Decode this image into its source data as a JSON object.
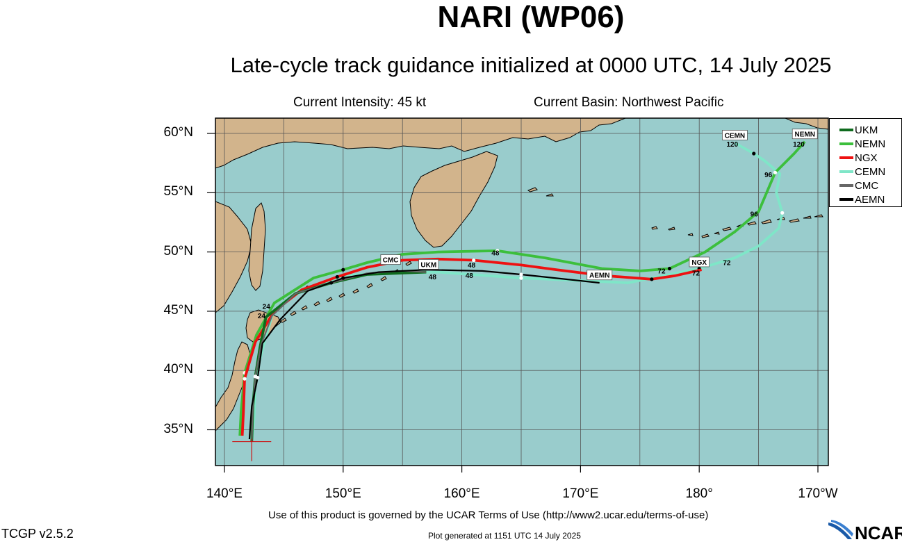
{
  "header": {
    "title": "NARI (WP06)",
    "subtitle": "Late-cycle track guidance initialized at 0000 UTC, 14 July 2025",
    "intensity": "Current Intensity: 45 kt",
    "basin": "Current Basin: Northwest Pacific"
  },
  "axes": {
    "lat_labels": [
      "60°N",
      "55°N",
      "50°N",
      "45°N",
      "40°N",
      "35°N"
    ],
    "lon_labels": [
      "140°E",
      "150°E",
      "160°E",
      "170°E",
      "180°",
      "170°W"
    ]
  },
  "legend": [
    {
      "name": "UKM",
      "color": "#0f6b1e"
    },
    {
      "name": "NEMN",
      "color": "#3cbf3c"
    },
    {
      "name": "NGX",
      "color": "#ee1111"
    },
    {
      "name": "CEMN",
      "color": "#7fe6c8"
    },
    {
      "name": "CMC",
      "color": "#666666"
    },
    {
      "name": "AEMN",
      "color": "#000000"
    }
  ],
  "tracks": [
    {
      "name": "CEMN",
      "color": "#7fe6c8",
      "label_text": "CEMN",
      "points": [
        [
          142.3,
          34.0
        ],
        [
          142.5,
          36
        ],
        [
          142.6,
          39.4
        ],
        [
          143.4,
          42.5
        ],
        [
          144.0,
          44.6
        ],
        [
          145,
          45.8
        ],
        [
          147,
          47
        ],
        [
          150,
          48
        ],
        [
          153,
          48.2
        ],
        [
          158,
          48.3
        ],
        [
          165,
          47.8
        ],
        [
          172,
          47.5
        ],
        [
          174,
          47.4
        ],
        [
          176,
          47.8
        ],
        [
          180,
          48.6
        ],
        [
          183,
          49.5
        ],
        [
          185,
          50.5
        ],
        [
          186.7,
          52
        ],
        [
          187,
          53.3
        ],
        [
          186.5,
          55
        ],
        [
          186.8,
          56.6
        ],
        [
          185.5,
          57.7
        ],
        [
          184.6,
          58.3
        ],
        [
          183.0,
          59.2
        ]
      ],
      "hour_labels": [
        {
          "text": "72",
          "lon": 182.0,
          "lat": 48.9
        },
        {
          "text": "120",
          "lon": 182.3,
          "lat": 58.9
        }
      ]
    },
    {
      "name": "NEMN",
      "color": "#3cbf3c",
      "label_text": "NEMN",
      "points": [
        [
          141.3,
          34.5
        ],
        [
          141.4,
          36.5
        ],
        [
          141.7,
          39.8
        ],
        [
          142.7,
          43
        ],
        [
          144.2,
          45.7
        ],
        [
          147.5,
          47.8
        ],
        [
          150,
          48.5
        ],
        [
          152,
          49.1
        ],
        [
          155,
          49.8
        ],
        [
          158,
          50.0
        ],
        [
          163,
          50.1
        ],
        [
          167,
          49.5
        ],
        [
          171.8,
          48.6
        ],
        [
          175,
          48.4
        ],
        [
          177.5,
          48.6
        ],
        [
          180.5,
          50
        ],
        [
          183,
          51.7
        ],
        [
          185,
          53.4
        ],
        [
          186.4,
          56.7
        ],
        [
          188,
          58.3
        ],
        [
          188.9,
          59.3
        ]
      ],
      "hour_labels": [
        {
          "text": "48",
          "lon": 162.5,
          "lat": 49.7
        },
        {
          "text": "72",
          "lon": 176.5,
          "lat": 48.2
        },
        {
          "text": "96",
          "lon": 184.3,
          "lat": 53.0
        },
        {
          "text": "96",
          "lon": 185.5,
          "lat": 56.3
        },
        {
          "text": "120",
          "lon": 187.9,
          "lat": 58.9
        }
      ]
    },
    {
      "name": "NGX",
      "color": "#ee1111",
      "label_text": "NGX",
      "points": [
        [
          141.5,
          34.5
        ],
        [
          141.6,
          36.5
        ],
        [
          141.7,
          39.3
        ],
        [
          142.6,
          42.4
        ],
        [
          144.2,
          45
        ],
        [
          146.5,
          46.8
        ],
        [
          149.5,
          47.9
        ],
        [
          152,
          48.7
        ],
        [
          155,
          49.3
        ],
        [
          158,
          49.4
        ],
        [
          161,
          49.3
        ],
        [
          165,
          48.9
        ],
        [
          168,
          48.5
        ],
        [
          172,
          48.0
        ],
        [
          176,
          47.7
        ],
        [
          178,
          48.0
        ],
        [
          180.2,
          48.5
        ]
      ],
      "hour_labels": [
        {
          "text": "48",
          "lon": 160.5,
          "lat": 48.7
        },
        {
          "text": "72",
          "lon": 179.4,
          "lat": 48.0
        }
      ]
    },
    {
      "name": "UKM",
      "color": "#0f6b1e",
      "label_text": "UKM",
      "points": [
        [
          142.3,
          34.0
        ],
        [
          142.4,
          37
        ],
        [
          142.6,
          39.5
        ],
        [
          143.0,
          42
        ],
        [
          143.5,
          44.5
        ],
        [
          146,
          46.5
        ],
        [
          149,
          47.4
        ],
        [
          152,
          48.1
        ],
        [
          157,
          48.3
        ]
      ],
      "hour_labels": [
        {
          "text": "48",
          "lon": 157.2,
          "lat": 47.7
        }
      ]
    },
    {
      "name": "CMC",
      "color": "#666666",
      "label_text": "CMC",
      "points": [
        [
          142.3,
          34.0
        ],
        [
          142.4,
          37
        ],
        [
          142.6,
          39.5
        ],
        [
          143.1,
          42.2
        ],
        [
          144,
          44.6
        ],
        [
          146,
          46.5
        ],
        [
          149,
          47.4
        ],
        [
          152,
          48.2
        ],
        [
          155,
          48.4
        ],
        [
          157,
          48.3
        ]
      ],
      "hour_labels": []
    },
    {
      "name": "AEMN",
      "color": "#000000",
      "label_text": "AEMN",
      "points": [
        [
          142.1,
          34.2
        ],
        [
          142.3,
          37
        ],
        [
          142.8,
          39.4
        ],
        [
          143.2,
          42.3
        ],
        [
          144.7,
          44.3
        ],
        [
          147,
          46.7
        ],
        [
          150,
          47.8
        ],
        [
          153,
          48.3
        ],
        [
          157,
          48.5
        ],
        [
          161.7,
          48.4
        ],
        [
          165,
          48.1
        ],
        [
          171.6,
          47.4
        ]
      ],
      "hour_labels": [
        {
          "text": "48",
          "lon": 160.3,
          "lat": 47.8
        },
        {
          "text": "24",
          "lon": 143.2,
          "lat": 45.2
        },
        {
          "text": "24",
          "lon": 142.8,
          "lat": 44.4
        }
      ]
    }
  ],
  "track_boxes": [
    {
      "text": "CEMN",
      "lon": 183.0,
      "lat": 59.8
    },
    {
      "text": "NEMN",
      "lon": 188.9,
      "lat": 59.9
    },
    {
      "text": "CMC",
      "lon": 154.0,
      "lat": 49.3
    },
    {
      "text": "UKM",
      "lon": 157.2,
      "lat": 48.9
    },
    {
      "text": "AEMN",
      "lon": 171.6,
      "lat": 48.0
    },
    {
      "text": "NGX",
      "lon": 180.0,
      "lat": 49.1
    }
  ],
  "storm_position": {
    "lon": 142.3,
    "lat": 34.0
  },
  "footer": {
    "notice": "Use of this product is governed by the UCAR Terms of Use (http://www2.ucar.edu/terms-of-use)",
    "version": "TCGP v2.5.2",
    "generated": "Plot generated at 1151 UTC   14 July 2025",
    "logo_text": "NCAR"
  },
  "colors": {
    "ocean": "#99cccc",
    "land": "#d2b48c",
    "grid": "#555555"
  }
}
